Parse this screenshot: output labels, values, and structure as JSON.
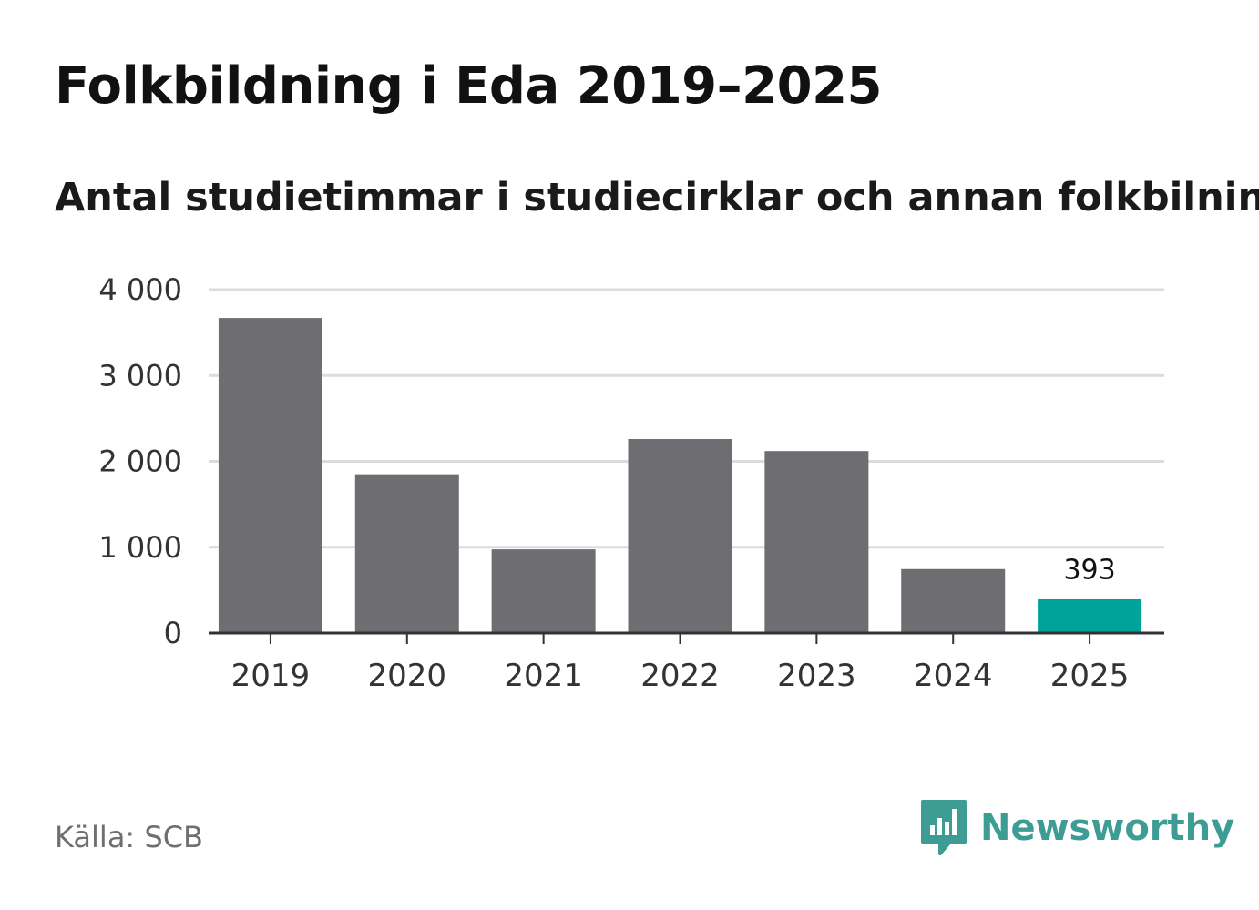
{
  "title": "Folkbildning i Eda 2019–2025",
  "subtitle": "Antal studietimmar i studiecirklar och annan folkbilning",
  "source": "Källa: SCB",
  "logo": {
    "text": "Newsworthy",
    "icon": "newsworthy-bar-chart-icon"
  },
  "colors": {
    "bar": "#6e6d72",
    "highlight": "#00a398",
    "grid": "#dcdcdc",
    "axis": "#333333",
    "logo": "#3d9c93"
  },
  "chart_data": {
    "type": "bar",
    "title": "Folkbildning i Eda 2019–2025",
    "subtitle": "Antal studietimmar i studiecirklar och annan folkbilning",
    "xlabel": "",
    "ylabel": "",
    "categories": [
      "2019",
      "2020",
      "2021",
      "2022",
      "2023",
      "2024",
      "2025"
    ],
    "values": [
      3670,
      1850,
      975,
      2260,
      2120,
      745,
      393
    ],
    "highlight_index": 6,
    "data_labels": [
      {
        "index": 6,
        "text": "393"
      }
    ],
    "ylim": [
      0,
      4000
    ],
    "yticks": [
      0,
      1000,
      2000,
      3000,
      4000
    ],
    "ytick_labels": [
      "0",
      "1 000",
      "2 000",
      "3 000",
      "4 000"
    ],
    "grid": true,
    "legend": "none"
  }
}
